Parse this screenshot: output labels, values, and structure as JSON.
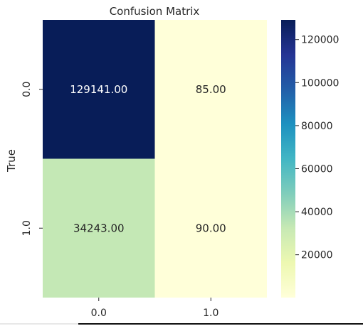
{
  "chart_data": {
    "type": "heatmap",
    "title": "Confusion Matrix",
    "ylabel": "True",
    "xlabel": "",
    "x_categories": [
      "0.0",
      "1.0"
    ],
    "y_categories": [
      "0.0",
      "1.0"
    ],
    "values": [
      [
        129141,
        85
      ],
      [
        34243,
        90
      ]
    ],
    "cell_labels": [
      [
        "129141.00",
        "85.00"
      ],
      [
        "34243.00",
        "90.00"
      ]
    ],
    "colormap": "YlGnBu",
    "colorbar": {
      "ticks": [
        20000,
        40000,
        60000,
        80000,
        100000,
        120000
      ],
      "tick_labels": [
        "20000",
        "40000",
        "60000",
        "80000",
        "100000",
        "120000"
      ],
      "range": [
        85,
        129141
      ]
    },
    "colors": {
      "cell_0_0": "#081d58",
      "cell_0_1": "#ffffd9",
      "cell_1_0": "#c4e8b5",
      "cell_1_1": "#ffffd9",
      "label_light": "#ffffff",
      "label_dark": "#262626"
    }
  }
}
